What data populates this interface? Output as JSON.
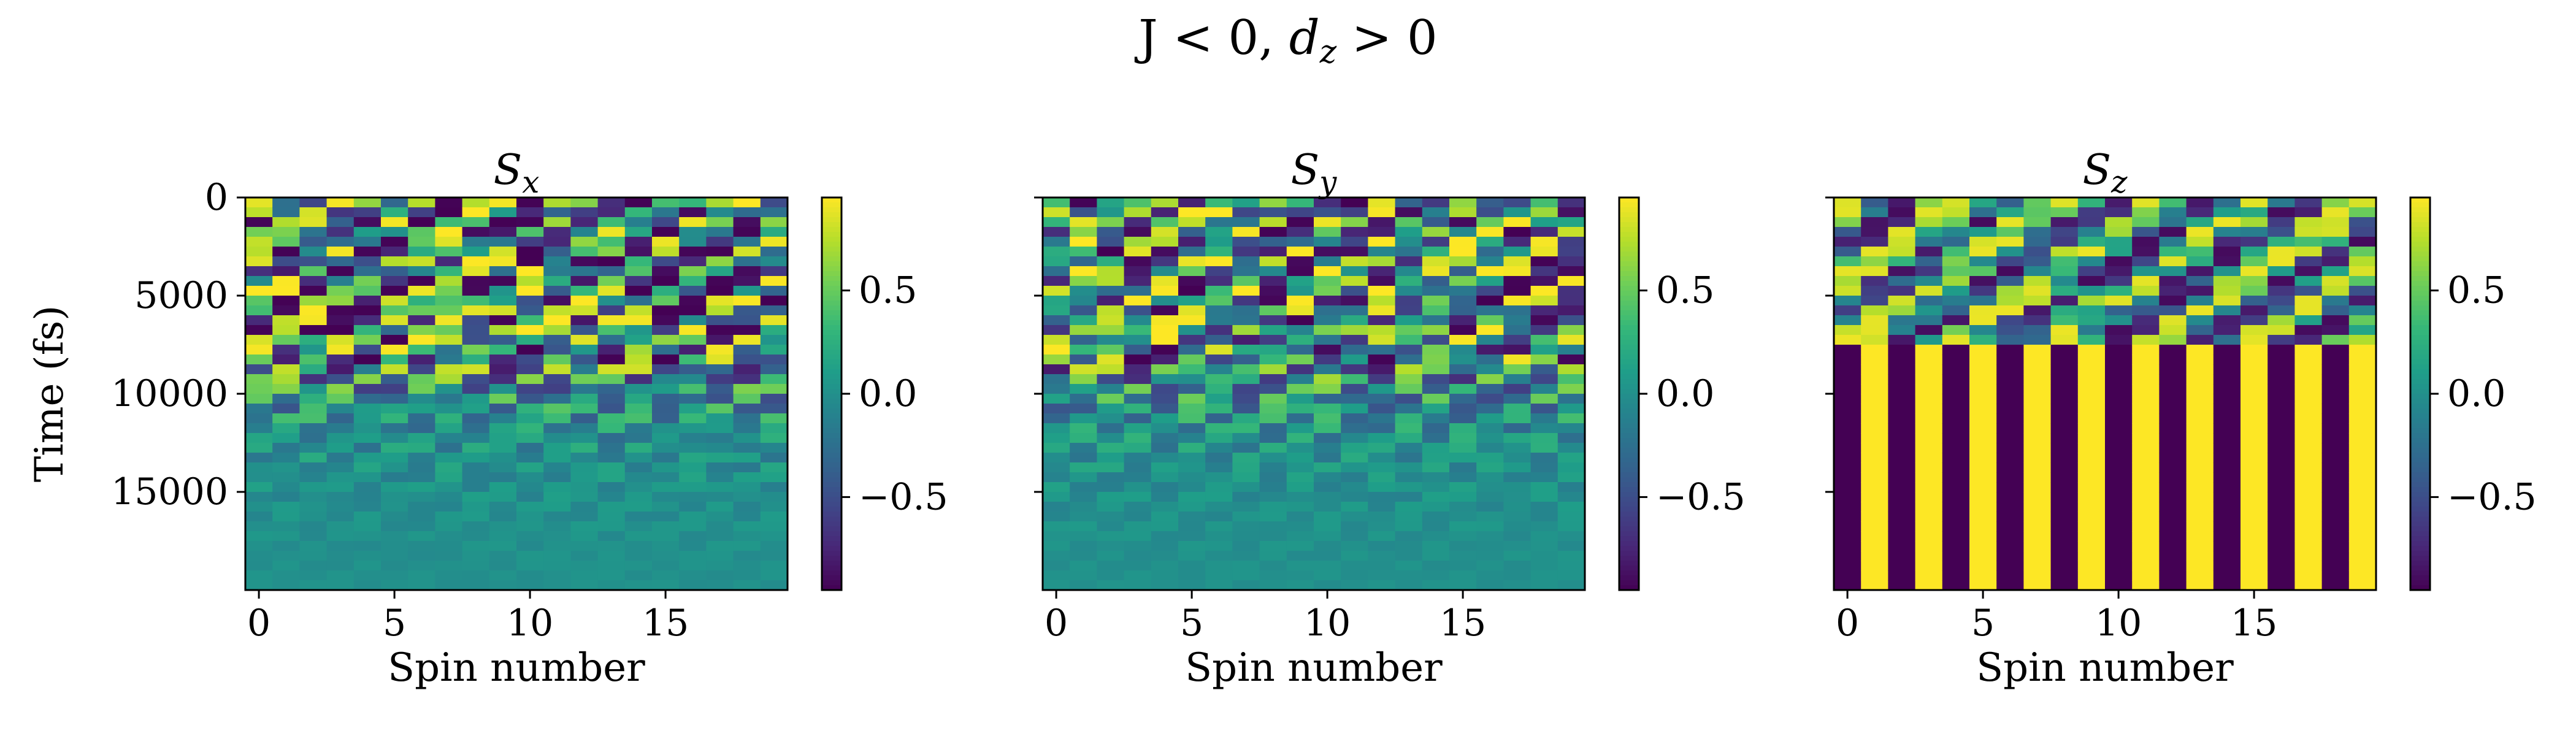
{
  "figure": {
    "suptitle_parts": {
      "pre": "J < 0, ",
      "var": "d",
      "sub": "z",
      "post": " > 0"
    }
  },
  "chart_data": [
    {
      "type": "heatmap",
      "title": "S_x",
      "title_base": "S",
      "title_sub": "x",
      "xlabel": "Spin number",
      "ylabel": "Time (fs)",
      "xticks": [
        0,
        5,
        10,
        15
      ],
      "yticks": [
        0,
        5000,
        10000,
        15000
      ],
      "xlim": [
        -0.5,
        19.5
      ],
      "ylim": [
        20000,
        0
      ],
      "n_spins": 20,
      "n_time_bins": 40,
      "colormap": "viridis",
      "colorbar_range": [
        -0.95,
        0.95
      ],
      "colorbar_ticks": [
        "0.5",
        "0.0",
        "−0.5"
      ],
      "colorbar_tick_values": [
        0.5,
        0.0,
        -0.5
      ],
      "pattern": "oscillating-decaying"
    },
    {
      "type": "heatmap",
      "title": "S_y",
      "title_base": "S",
      "title_sub": "y",
      "xlabel": "Spin number",
      "ylabel": "",
      "xticks": [
        0,
        5,
        10,
        15
      ],
      "yticks": [],
      "xlim": [
        -0.5,
        19.5
      ],
      "ylim": [
        20000,
        0
      ],
      "n_spins": 20,
      "n_time_bins": 40,
      "colormap": "viridis",
      "colorbar_range": [
        -0.95,
        0.95
      ],
      "colorbar_ticks": [
        "0.5",
        "0.0",
        "−0.5"
      ],
      "colorbar_tick_values": [
        0.5,
        0.0,
        -0.5
      ],
      "pattern": "oscillating-decaying"
    },
    {
      "type": "heatmap",
      "title": "S_z",
      "title_base": "S",
      "title_sub": "z",
      "xlabel": "Spin number",
      "ylabel": "",
      "xticks": [
        0,
        5,
        10,
        15
      ],
      "yticks": [],
      "xlim": [
        -0.5,
        19.5
      ],
      "ylim": [
        20000,
        0
      ],
      "n_spins": 20,
      "n_time_bins": 40,
      "colormap": "viridis",
      "colorbar_range": [
        -0.95,
        0.95
      ],
      "colorbar_ticks": [
        "0.5",
        "0.0",
        "−0.5"
      ],
      "colorbar_tick_values": [
        0.5,
        0.0,
        -0.5
      ],
      "pattern": "alternating-stripes-after-8000fs"
    }
  ]
}
